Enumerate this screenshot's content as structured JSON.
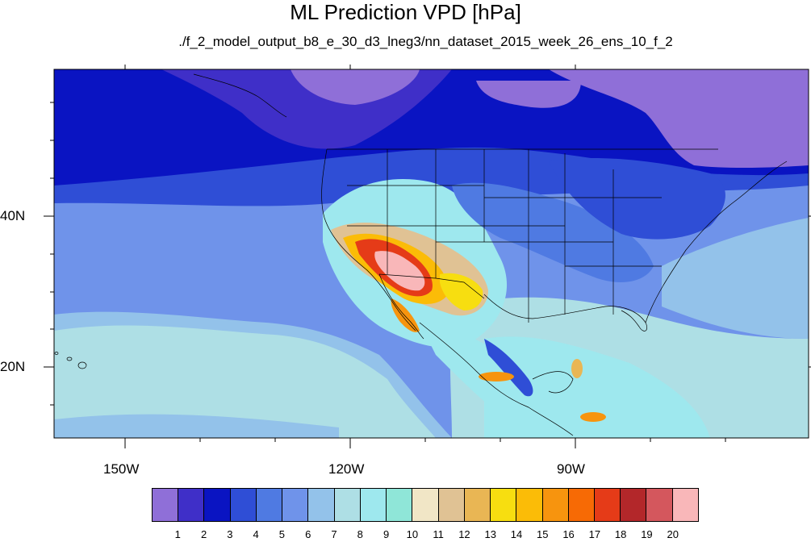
{
  "title": "ML Prediction VPD [hPa]",
  "subtitle": "./f_2_model_output_b8_e_30_d3_lneg3/nn_dataset_2015_week_26_ens_10_f_2",
  "lat_labels": [
    "40N",
    "20N"
  ],
  "lon_labels": [
    "150W",
    "120W",
    "90W"
  ],
  "colorbar": {
    "colors": [
      "#8f6fd8",
      "#3f2fc8",
      "#0a14c2",
      "#2f4ed6",
      "#4f7ae2",
      "#6f93ea",
      "#93c2ea",
      "#aedfe5",
      "#9ee8ee",
      "#8fe6d8",
      "#f1e6c6",
      "#e0c294",
      "#e9b654",
      "#f7de10",
      "#fbbc07",
      "#f7940e",
      "#f76a05",
      "#e53b18",
      "#b3272a",
      "#d4575d",
      "#f9b7b9"
    ],
    "labels": [
      "1",
      "2",
      "3",
      "4",
      "5",
      "6",
      "7",
      "8",
      "9",
      "10",
      "11",
      "12",
      "13",
      "14",
      "15",
      "16",
      "17",
      "18",
      "19",
      "20"
    ]
  }
}
